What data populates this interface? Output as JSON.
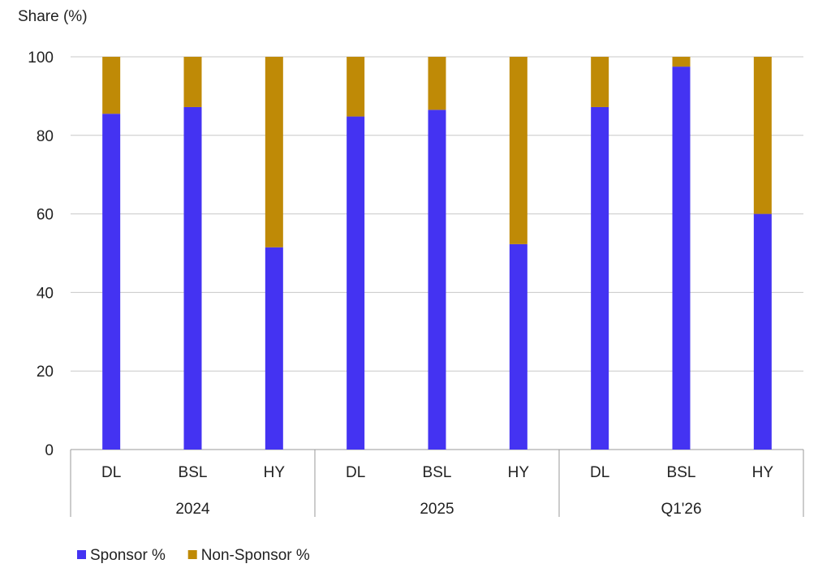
{
  "chart_data": {
    "type": "bar",
    "stacked": true,
    "ylabel": "Share (%)",
    "ylim": [
      0,
      100
    ],
    "yticks": [
      0,
      20,
      40,
      60,
      80,
      100
    ],
    "grid": true,
    "groups": [
      {
        "label": "2024",
        "categories": [
          "DL",
          "BSL",
          "HY"
        ]
      },
      {
        "label": "2025",
        "categories": [
          "DL",
          "BSL",
          "HY"
        ]
      },
      {
        "label": "Q1'26",
        "categories": [
          "DL",
          "BSL",
          "HY"
        ]
      }
    ],
    "series": [
      {
        "name": "Sponsor %",
        "color": "#4433f2",
        "values": [
          85.5,
          87.2,
          51.5,
          84.8,
          86.5,
          52.3,
          87.2,
          97.5,
          60.0
        ]
      },
      {
        "name": "Non-Sponsor %",
        "color": "#bf8a06",
        "values": [
          14.5,
          12.8,
          48.5,
          15.2,
          13.5,
          47.7,
          12.8,
          2.5,
          40.0
        ]
      }
    ],
    "legend_position": "bottom-left"
  }
}
